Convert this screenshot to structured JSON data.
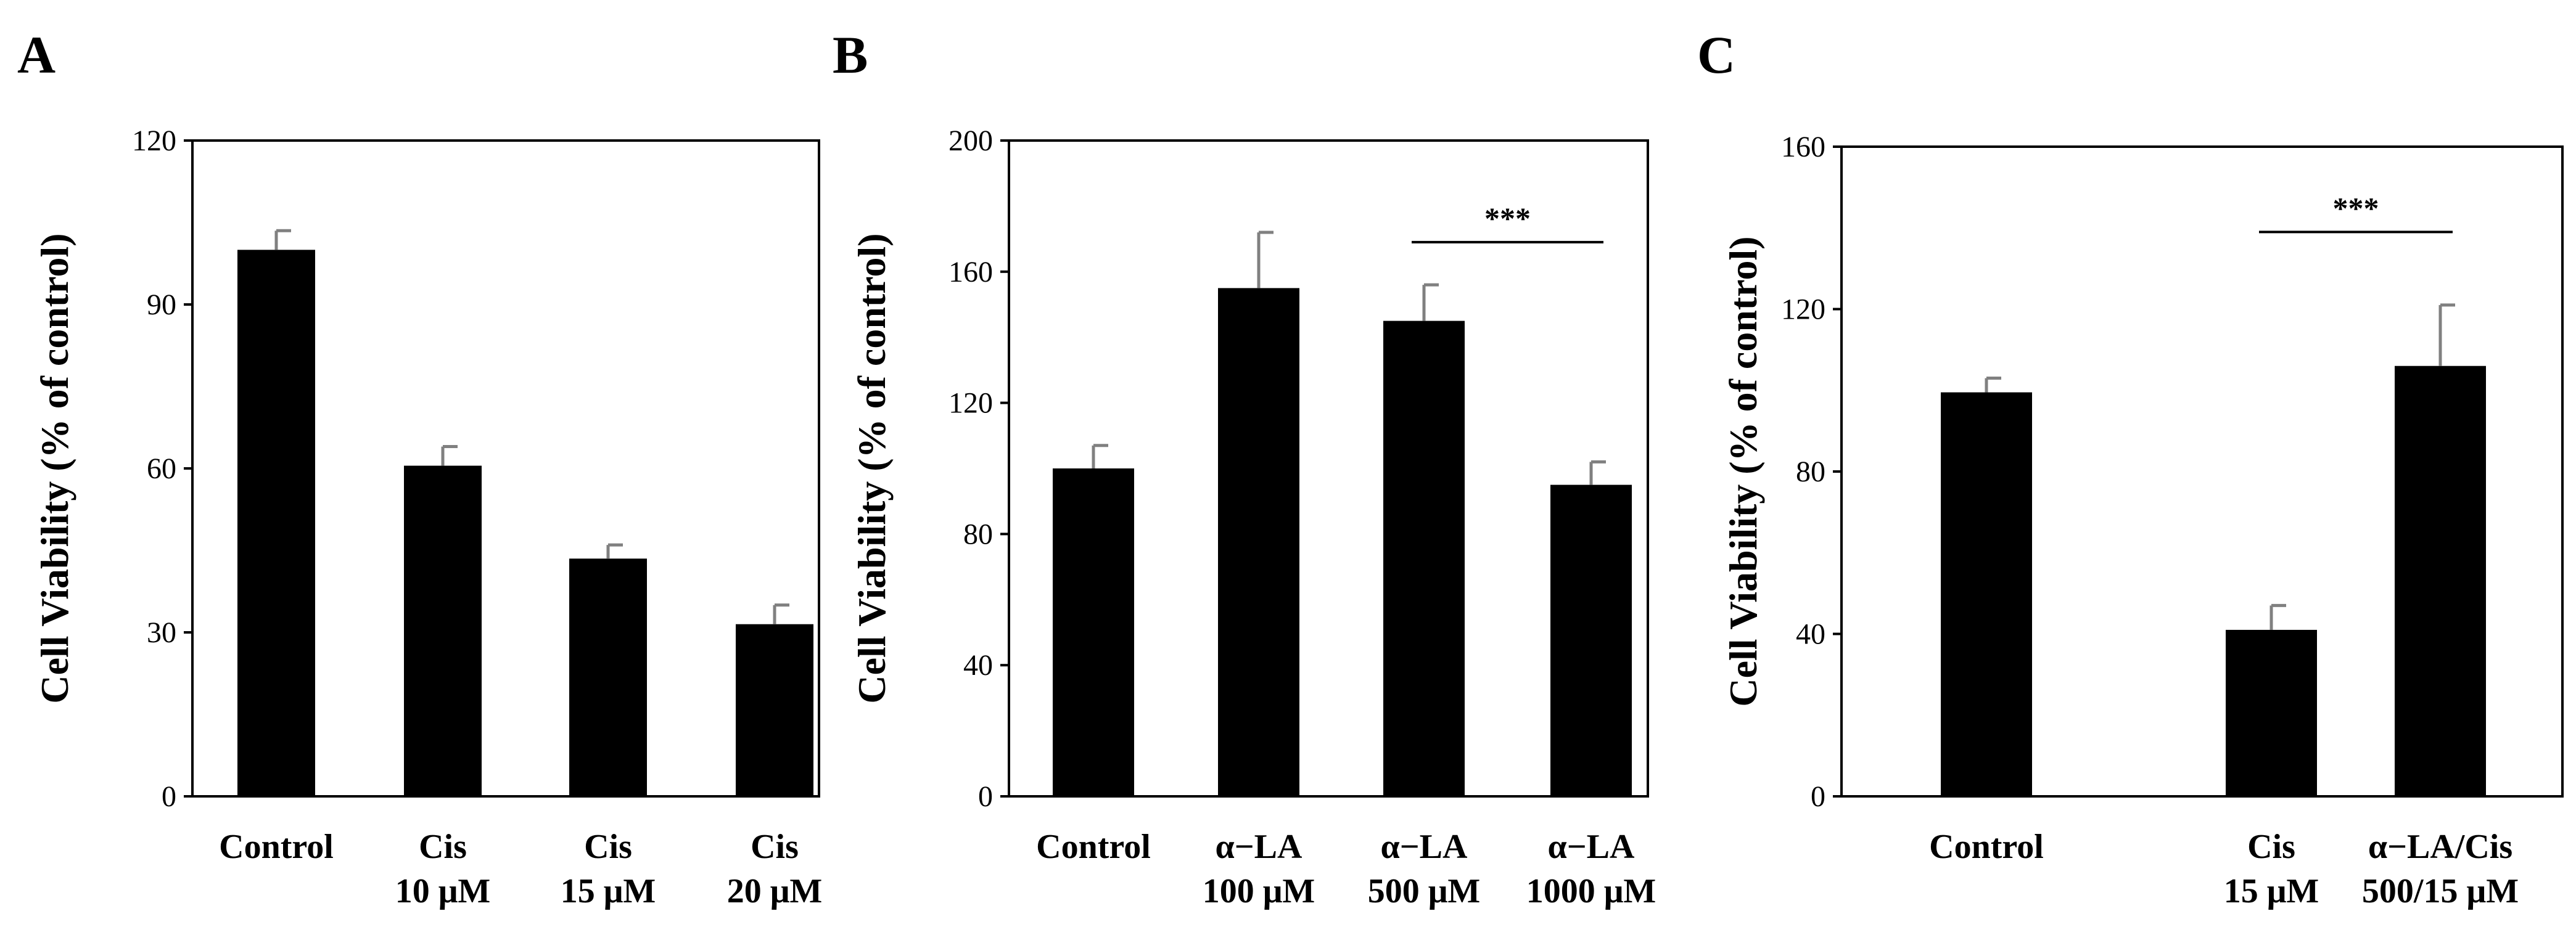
{
  "chart_data": [
    {
      "panel": "A",
      "type": "bar",
      "ylabel": "Cell Viability (% of control)",
      "ylim": [
        0,
        120
      ],
      "yticks": [
        "0",
        "30",
        "60",
        "90",
        "120"
      ],
      "categories": [
        [
          "Control"
        ],
        [
          "Cis",
          "10 μM"
        ],
        [
          "Cis",
          "15 μM"
        ],
        [
          "Cis",
          "20 μM"
        ]
      ],
      "values": [
        100,
        60.5,
        43.5,
        31.5
      ],
      "errors": [
        3.5,
        3.5,
        2.5,
        3.5
      ],
      "significance": []
    },
    {
      "panel": "B",
      "type": "bar",
      "ylabel": "Cell Viability (% of control)",
      "ylim": [
        0,
        200
      ],
      "yticks": [
        "0",
        "40",
        "80",
        "120",
        "160",
        "200"
      ],
      "categories": [
        [
          "Control"
        ],
        [
          "α−LA",
          "100 μM"
        ],
        [
          "α−LA",
          "500 μM"
        ],
        [
          "α−LA",
          "1000 μM"
        ]
      ],
      "values": [
        100,
        155,
        145,
        95
      ],
      "errors": [
        7,
        17,
        11,
        7
      ],
      "significance": [
        {
          "from": 2,
          "to": 3,
          "y": 169,
          "label": "***"
        }
      ]
    },
    {
      "panel": "C",
      "type": "bar",
      "ylabel": "Cell Viability (% of control)",
      "ylim": [
        0,
        160
      ],
      "yticks": [
        "0",
        "40",
        "80",
        "120",
        "160"
      ],
      "categories": [
        [
          "Control"
        ],
        [
          "Cis",
          "15 μM"
        ],
        [
          "α−LA/Cis",
          "500/15 μM"
        ]
      ],
      "values": [
        99.5,
        41,
        106
      ],
      "errors": [
        3.5,
        6,
        15
      ],
      "significance": [
        {
          "from": 1,
          "to": 2,
          "y": 139,
          "label": "***"
        }
      ]
    }
  ]
}
